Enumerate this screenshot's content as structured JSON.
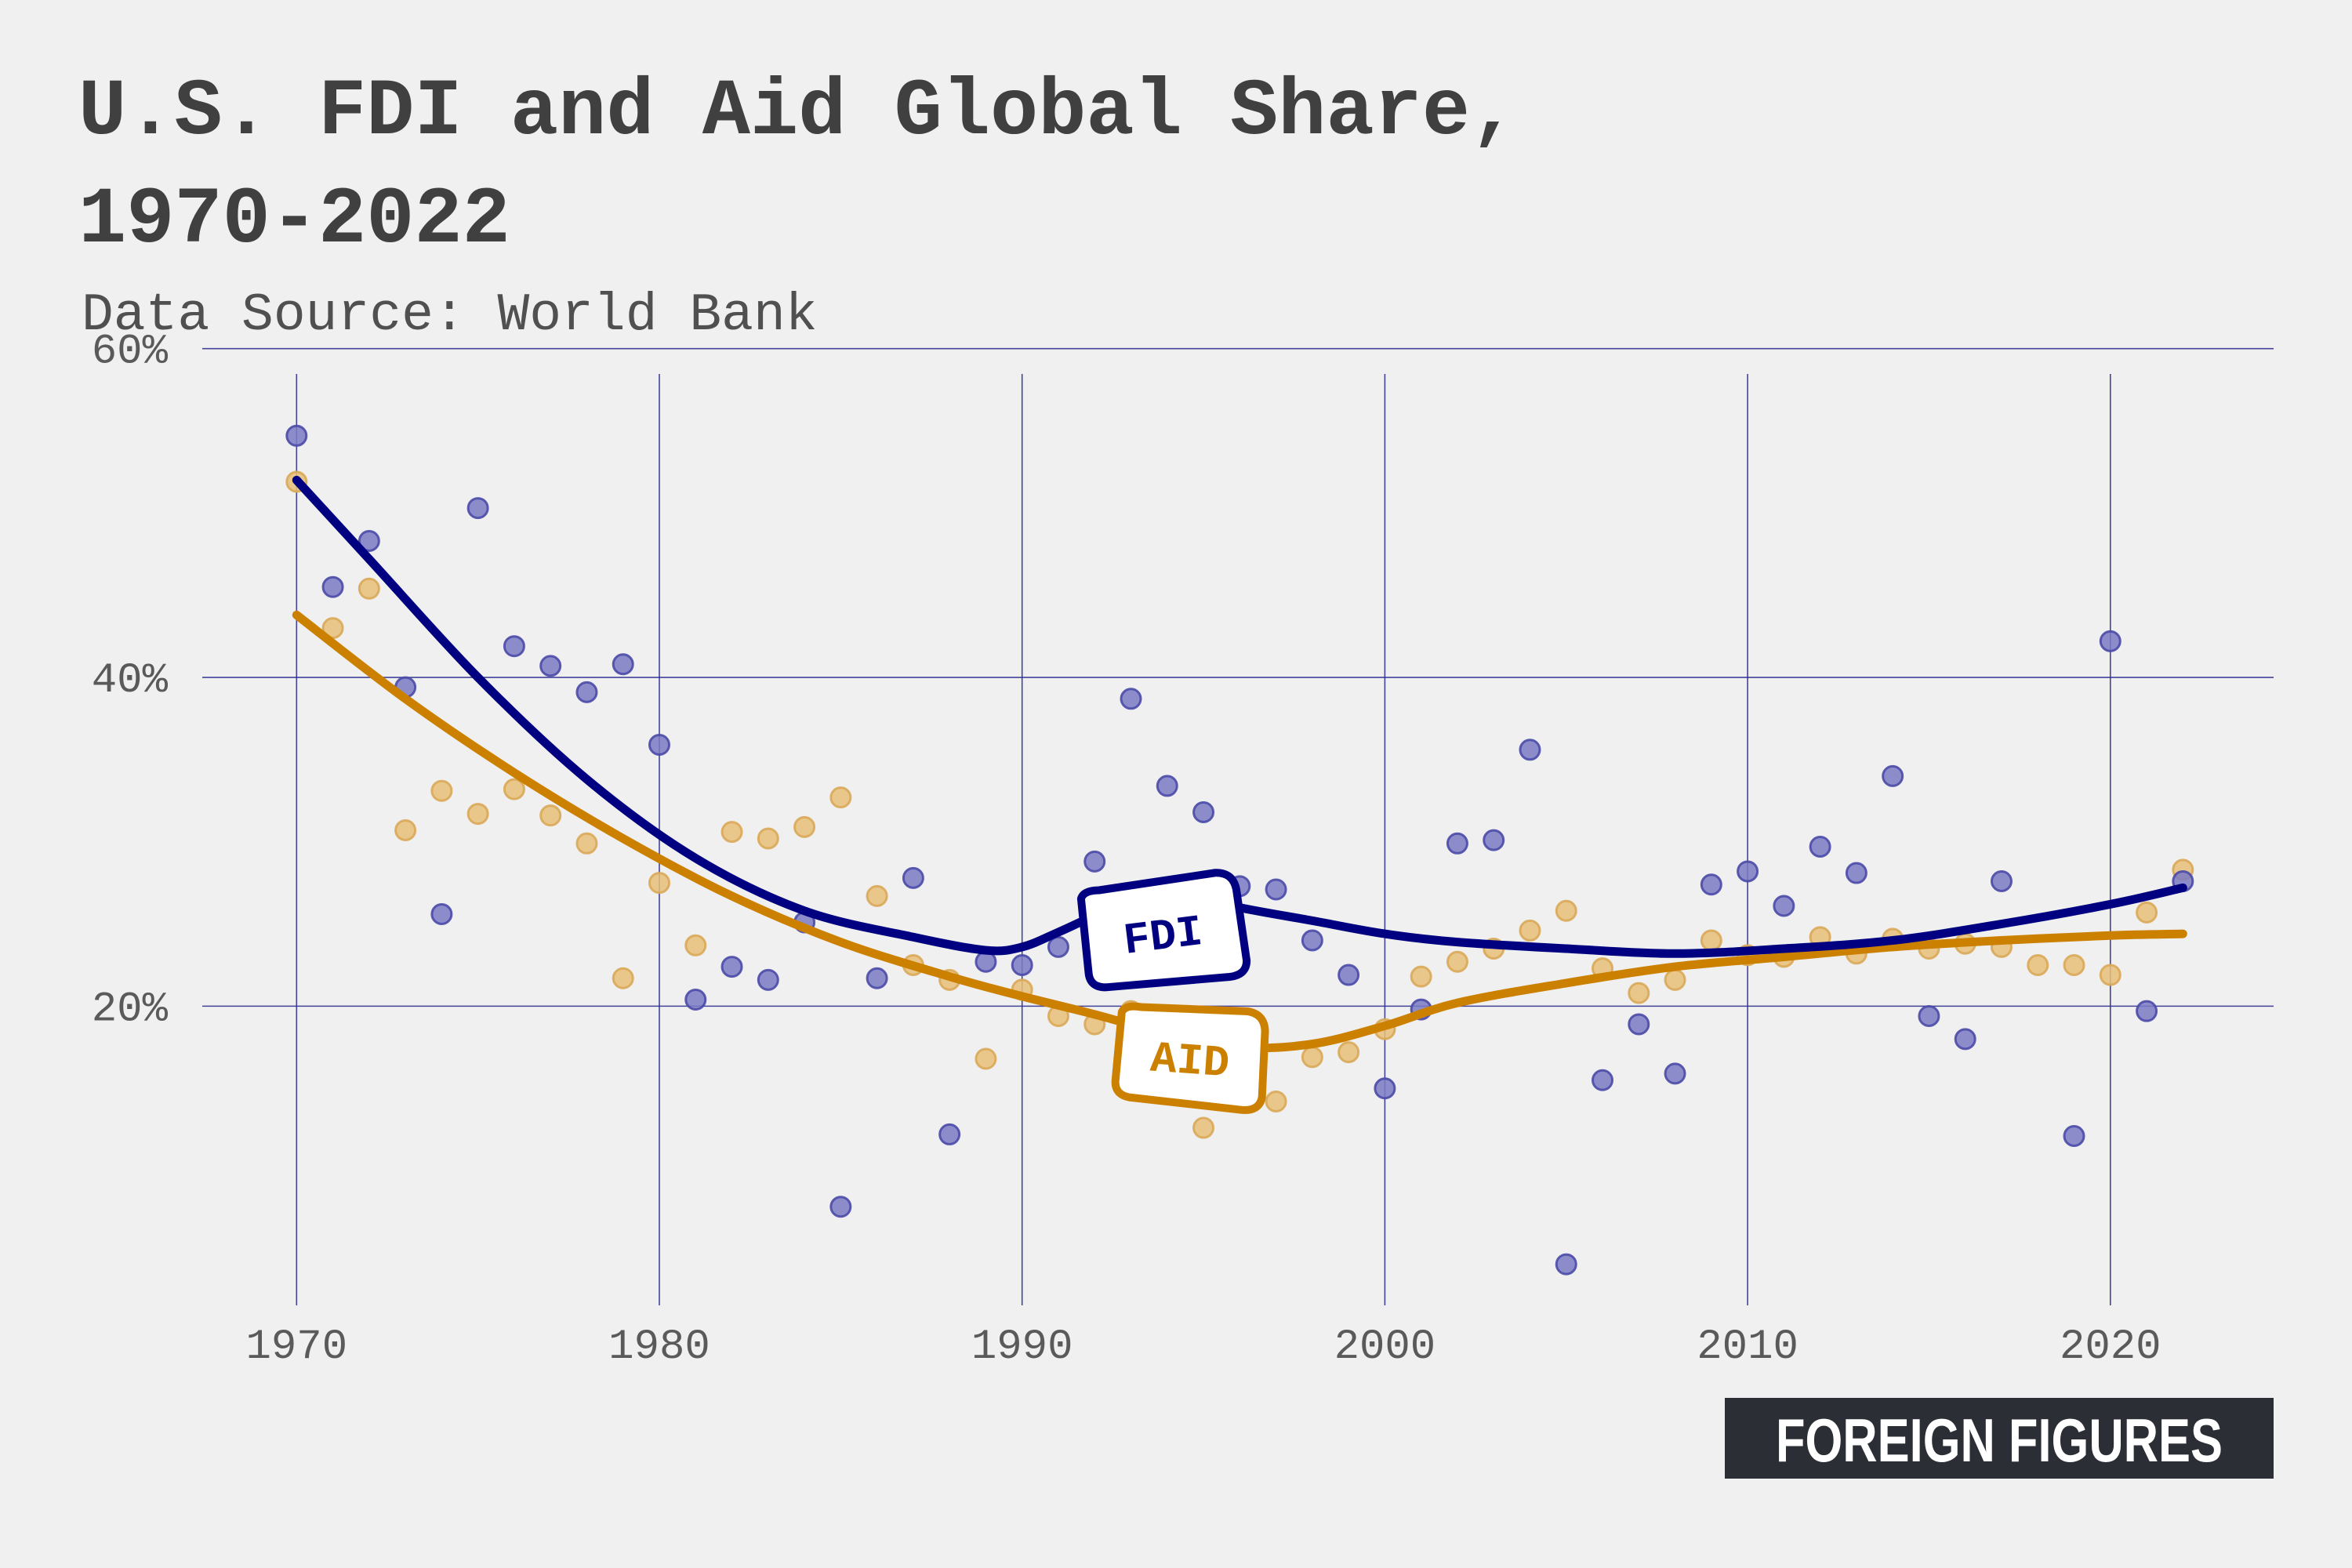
{
  "title_line1": "U.S. FDI and Aid Global Share,",
  "title_line2": "1970-2022",
  "subtitle": "Data Source: World Bank",
  "brand": "FOREIGN FIGURES",
  "colors": {
    "background": "#f0f0f0",
    "fdi": "#000080",
    "aid": "#cc8000",
    "grid": "#303090",
    "text": "#404040",
    "brand_bg": "#2b2e34"
  },
  "chart_data": {
    "type": "scatter",
    "title": "U.S. FDI and Aid Global Share, 1970-2022",
    "subtitle": "Data Source: World Bank",
    "xlabel": "",
    "ylabel": "",
    "xlim": [
      1967.4,
      2024.5
    ],
    "ylim": [
      1.8,
      60.7
    ],
    "x_ticks": [
      1970,
      1980,
      1990,
      2000,
      2010,
      2020
    ],
    "y_ticks": [
      20,
      40,
      60
    ],
    "y_tick_labels": [
      "20%",
      "40%",
      "60%"
    ],
    "grid": true,
    "legend": "inline labels on the trend lines",
    "series": [
      {
        "name": "FDI",
        "color": "#000080",
        "points": [
          [
            1970,
            54.7
          ],
          [
            1971,
            45.5
          ],
          [
            1972,
            48.3
          ],
          [
            1973,
            39.4
          ],
          [
            1974,
            25.6
          ],
          [
            1975,
            50.3
          ],
          [
            1976,
            41.9
          ],
          [
            1977,
            40.7
          ],
          [
            1978,
            39.1
          ],
          [
            1979,
            40.8
          ],
          [
            1980,
            35.9
          ],
          [
            1981,
            20.4
          ],
          [
            1982,
            22.4
          ],
          [
            1983,
            21.6
          ],
          [
            1984,
            25.1
          ],
          [
            1985,
            7.8
          ],
          [
            1986,
            21.7
          ],
          [
            1987,
            27.8
          ],
          [
            1988,
            12.2
          ],
          [
            1989,
            22.7
          ],
          [
            1990,
            22.5
          ],
          [
            1991,
            23.6
          ],
          [
            1992,
            28.8
          ],
          [
            1993,
            38.7
          ],
          [
            1994,
            33.4
          ],
          [
            1995,
            31.8
          ],
          [
            1996,
            27.3
          ],
          [
            1997,
            27.1
          ],
          [
            1998,
            24.0
          ],
          [
            1999,
            21.9
          ],
          [
            2000,
            15.0
          ],
          [
            2001,
            19.8
          ],
          [
            2002,
            29.9
          ],
          [
            2003,
            30.1
          ],
          [
            2004,
            35.6
          ],
          [
            2005,
            4.3
          ],
          [
            2006,
            15.5
          ],
          [
            2007,
            18.9
          ],
          [
            2008,
            15.9
          ],
          [
            2009,
            27.4
          ],
          [
            2010,
            28.2
          ],
          [
            2011,
            26.1
          ],
          [
            2012,
            29.7
          ],
          [
            2013,
            28.1
          ],
          [
            2014,
            34.0
          ],
          [
            2015,
            19.4
          ],
          [
            2016,
            18.0
          ],
          [
            2017,
            27.6
          ],
          [
            2019,
            12.1
          ],
          [
            2020,
            42.2
          ],
          [
            2021,
            19.7
          ],
          [
            2022,
            27.6
          ]
        ],
        "trend": [
          [
            1970,
            52.0
          ],
          [
            1972,
            47.2
          ],
          [
            1975,
            40.0
          ],
          [
            1978,
            33.8
          ],
          [
            1981,
            29.0
          ],
          [
            1984,
            25.8
          ],
          [
            1987,
            24.2
          ],
          [
            1989,
            23.4
          ],
          [
            1990,
            23.6
          ],
          [
            1991,
            24.5
          ],
          [
            1992,
            25.5
          ],
          [
            1993,
            26.3
          ],
          [
            1994,
            26.8
          ],
          [
            1995,
            26.6
          ],
          [
            1996,
            26.0
          ],
          [
            1998,
            25.2
          ],
          [
            2000,
            24.4
          ],
          [
            2002,
            23.9
          ],
          [
            2005,
            23.5
          ],
          [
            2008,
            23.2
          ],
          [
            2011,
            23.5
          ],
          [
            2014,
            24.0
          ],
          [
            2017,
            25.0
          ],
          [
            2020,
            26.2
          ],
          [
            2022,
            27.2
          ]
        ]
      },
      {
        "name": "AID",
        "color": "#cc8000",
        "points": [
          [
            1970,
            51.9
          ],
          [
            1971,
            43.0
          ],
          [
            1972,
            45.4
          ],
          [
            1973,
            30.7
          ],
          [
            1974,
            33.1
          ],
          [
            1975,
            31.7
          ],
          [
            1976,
            33.2
          ],
          [
            1977,
            31.6
          ],
          [
            1978,
            29.9
          ],
          [
            1979,
            21.7
          ],
          [
            1980,
            27.5
          ],
          [
            1981,
            23.7
          ],
          [
            1982,
            30.6
          ],
          [
            1983,
            30.2
          ],
          [
            1984,
            30.9
          ],
          [
            1985,
            32.7
          ],
          [
            1986,
            26.7
          ],
          [
            1987,
            22.5
          ],
          [
            1988,
            21.6
          ],
          [
            1989,
            16.8
          ],
          [
            1990,
            21.0
          ],
          [
            1991,
            19.4
          ],
          [
            1992,
            18.9
          ],
          [
            1993,
            19.7
          ],
          [
            1994,
            18.0
          ],
          [
            1995,
            12.6
          ],
          [
            1996,
            15.7
          ],
          [
            1997,
            14.2
          ],
          [
            1998,
            16.9
          ],
          [
            1999,
            17.2
          ],
          [
            2000,
            18.6
          ],
          [
            2001,
            21.8
          ],
          [
            2002,
            22.7
          ],
          [
            2003,
            23.5
          ],
          [
            2004,
            24.6
          ],
          [
            2005,
            25.8
          ],
          [
            2006,
            22.3
          ],
          [
            2007,
            20.8
          ],
          [
            2008,
            21.6
          ],
          [
            2009,
            24.0
          ],
          [
            2010,
            23.1
          ],
          [
            2011,
            23.0
          ],
          [
            2012,
            24.2
          ],
          [
            2013,
            23.2
          ],
          [
            2014,
            24.1
          ],
          [
            2015,
            23.5
          ],
          [
            2016,
            23.8
          ],
          [
            2017,
            23.6
          ],
          [
            2018,
            22.5
          ],
          [
            2019,
            22.5
          ],
          [
            2020,
            21.9
          ],
          [
            2021,
            25.7
          ],
          [
            2022,
            28.3
          ]
        ],
        "trend": [
          [
            1970,
            43.8
          ],
          [
            1973,
            38.7
          ],
          [
            1976,
            34.2
          ],
          [
            1979,
            30.2
          ],
          [
            1982,
            26.7
          ],
          [
            1985,
            23.9
          ],
          [
            1988,
            21.8
          ],
          [
            1990,
            20.6
          ],
          [
            1992,
            19.5
          ],
          [
            1994,
            18.3
          ],
          [
            1996,
            17.5
          ],
          [
            1998,
            17.7
          ],
          [
            2000,
            18.8
          ],
          [
            2002,
            20.2
          ],
          [
            2005,
            21.4
          ],
          [
            2008,
            22.4
          ],
          [
            2011,
            23.0
          ],
          [
            2014,
            23.6
          ],
          [
            2017,
            24.0
          ],
          [
            2020,
            24.3
          ],
          [
            2022,
            24.4
          ]
        ]
      }
    ]
  }
}
